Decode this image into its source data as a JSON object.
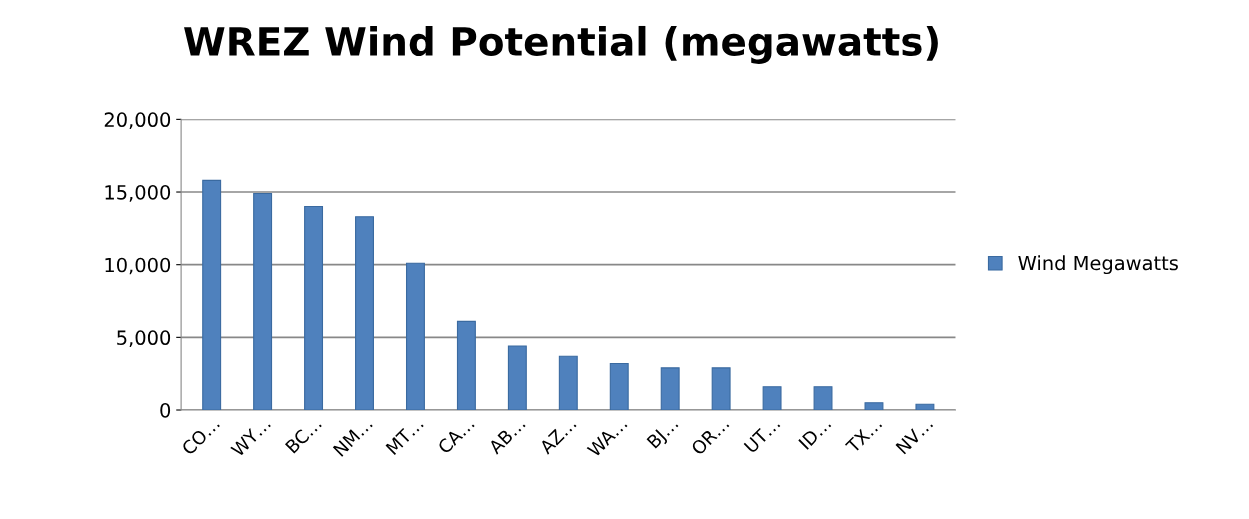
{
  "chart_data": {
    "type": "bar",
    "title": "WREZ Wind Potential (megawatts)",
    "categories": [
      "CO…",
      "WY…",
      "BC…",
      "NM…",
      "MT…",
      "CA…",
      "AB…",
      "AZ…",
      "WA…",
      "BJ…",
      "OR…",
      "UT…",
      "ID…",
      "TX…",
      "NV…"
    ],
    "series": [
      {
        "name": "Wind Megawatts",
        "color": "#4f81bd",
        "values": [
          15800,
          14900,
          14000,
          13300,
          10100,
          6100,
          4400,
          3700,
          3200,
          2900,
          2900,
          1600,
          1600,
          500,
          400
        ]
      }
    ],
    "ylim": [
      0,
      20000
    ],
    "yticks": [
      {
        "value": 0,
        "label": "0"
      },
      {
        "value": 5000,
        "label": "5,000"
      },
      {
        "value": 10000,
        "label": "10,000"
      },
      {
        "value": 15000,
        "label": "15,000"
      },
      {
        "value": 20000,
        "label": "20,000"
      }
    ],
    "grid": "y",
    "legend": "right"
  }
}
